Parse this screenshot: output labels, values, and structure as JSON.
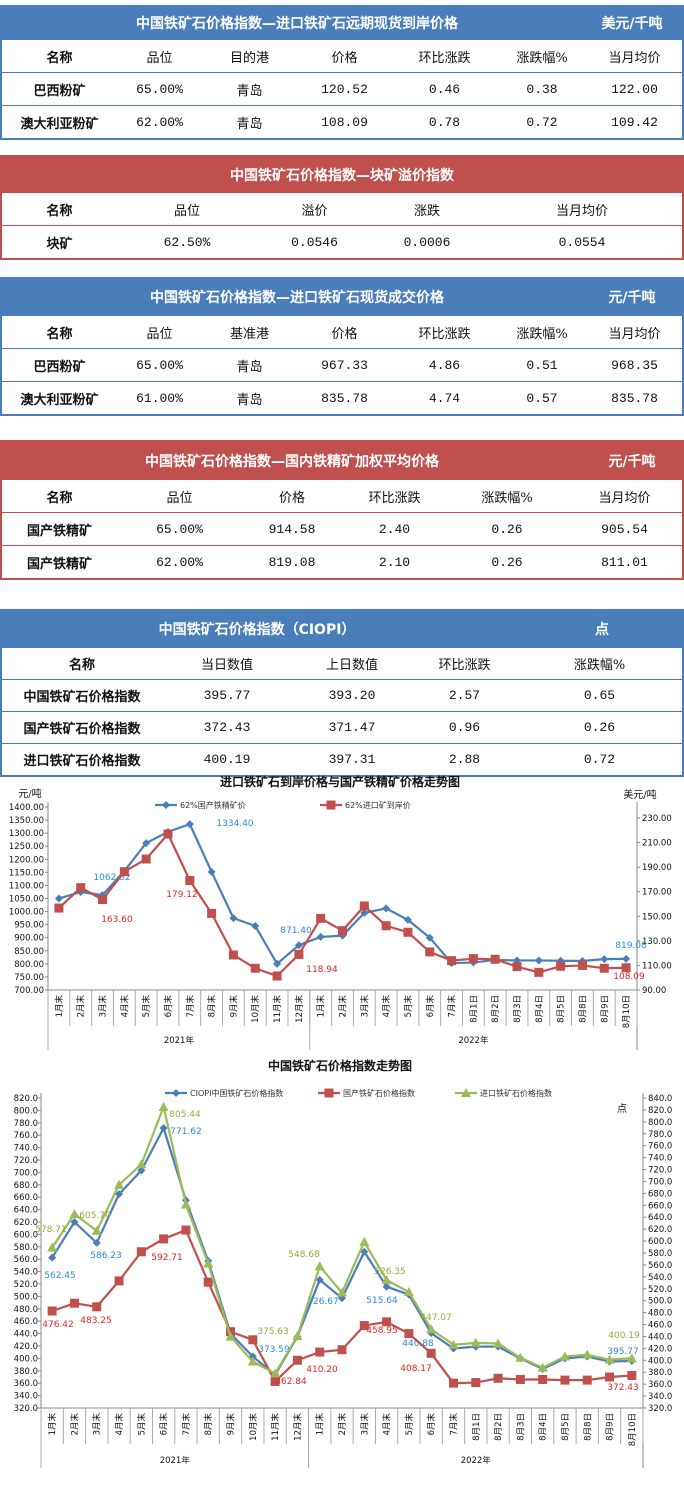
{
  "colors": {
    "blue": "#4a7ebb",
    "red": "#c0504d",
    "green": "#9bbb59"
  },
  "tables": [
    {
      "theme": "blue",
      "title": "中国铁矿石价格指数—进口铁矿石远期现货到岸价格",
      "unit": "美元/千吨",
      "columns": [
        "名称",
        "品位",
        "目的港",
        "价格",
        "环比涨跌",
        "涨跌幅%",
        "当月均价"
      ],
      "rows": [
        [
          "巴西粉矿",
          "65.00%",
          "青岛",
          "120.52",
          "0.46",
          "0.38",
          "122.00"
        ],
        [
          "澳大利亚粉矿",
          "62.00%",
          "青岛",
          "108.09",
          "0.78",
          "0.72",
          "109.42"
        ]
      ]
    },
    {
      "theme": "red",
      "title": "中国铁矿石价格指数—块矿溢价指数",
      "unit": "",
      "columns": [
        "名称",
        "品位",
        "溢价",
        "涨跌",
        "当月均价"
      ],
      "rows": [
        [
          "块矿",
          "62.50%",
          "0.0546",
          "0.0006",
          "0.0554"
        ]
      ]
    },
    {
      "theme": "blue",
      "title": "中国铁矿石价格指数—进口铁矿石现货成交价格",
      "unit": "元/千吨",
      "columns": [
        "名称",
        "品位",
        "基准港",
        "价格",
        "环比涨跌",
        "涨跌幅%",
        "当月均价"
      ],
      "rows": [
        [
          "巴西粉矿",
          "65.00%",
          "青岛",
          "967.33",
          "4.86",
          "0.51",
          "968.35"
        ],
        [
          "澳大利亚粉矿",
          "61.00%",
          "青岛",
          "835.78",
          "4.74",
          "0.57",
          "835.78"
        ]
      ]
    },
    {
      "theme": "red",
      "title": "中国铁矿石价格指数—国内铁精矿加权平均价格",
      "unit": "元/千吨",
      "columns": [
        "名称",
        "品位",
        "价格",
        "环比涨跌",
        "涨跌幅%",
        "当月均价"
      ],
      "rows": [
        [
          "国产铁精矿",
          "65.00%",
          "914.58",
          "2.40",
          "0.26",
          "905.54"
        ],
        [
          "国产铁精矿",
          "62.00%",
          "819.08",
          "2.10",
          "0.26",
          "811.01"
        ]
      ]
    },
    {
      "theme": "blue",
      "title": "中国铁矿石价格指数（CIOPI）",
      "unit": "点",
      "columns": [
        "名称",
        "当日数值",
        "上日数值",
        "环比涨跌",
        "涨跌幅%"
      ],
      "rows": [
        [
          "中国铁矿石价格指数",
          "395.77",
          "393.20",
          "2.57",
          "0.65"
        ],
        [
          "国产铁矿石价格指数",
          "372.43",
          "371.47",
          "0.96",
          "0.26"
        ],
        [
          "进口铁矿石价格指数",
          "400.19",
          "397.31",
          "2.88",
          "0.72"
        ]
      ]
    }
  ],
  "chart_data": [
    {
      "type": "line",
      "title": "进口铁矿石到岸价格与国产铁精矿价格走势图",
      "ylabel": "元/吨",
      "y2label": "美元/吨",
      "ylim": [
        700,
        1400
      ],
      "y2lim": [
        90,
        230
      ],
      "grid": false,
      "legend": "top",
      "categories": [
        "1月末",
        "2月末",
        "3月末",
        "4月末",
        "5月末",
        "6月末",
        "7月末",
        "8月末",
        "9月末",
        "10月末",
        "11月末",
        "12月末",
        "1月末",
        "2月末",
        "3月末",
        "4月末",
        "5月末",
        "6月末",
        "7月末",
        "8月1日",
        "8月2日",
        "8月3日",
        "8月4日",
        "8月5日",
        "8月8日",
        "8月9日",
        "8月10日"
      ],
      "groups": [
        {
          "label": "2021年",
          "count": 12
        },
        {
          "label": "2022年",
          "count": 15
        }
      ],
      "series": [
        {
          "name": "62%国产铁精矿价",
          "axis": "left",
          "color": "#4a7ebb",
          "marker": "diamond",
          "values": [
            1050,
            1075,
            1062.82,
            1155,
            1262,
            1305,
            1334.4,
            1152,
            975,
            945,
            800,
            871.4,
            903,
            908,
            995,
            1012,
            968,
            900,
            803,
            805,
            815,
            813,
            813,
            812,
            811,
            818,
            819.08
          ],
          "labels": [
            {
              "i": 2,
              "text": "1062.82"
            },
            {
              "i": 6,
              "text": "1334.40"
            },
            {
              "i": 11,
              "text": "871.40"
            },
            {
              "i": 26,
              "text": "819.08"
            }
          ]
        },
        {
          "name": "62%进口矿到岸价",
          "axis": "right",
          "color": "#c0504d",
          "marker": "square",
          "values": [
            156.7,
            173.3,
            163.6,
            186.3,
            196.6,
            217,
            179.12,
            152.4,
            118.5,
            107.7,
            101.4,
            118.94,
            148.3,
            138.3,
            158.4,
            142.3,
            137,
            121,
            113.9,
            115.5,
            115,
            109,
            104.4,
            109.3,
            110,
            107.7,
            108.09
          ],
          "labels": [
            {
              "i": 2,
              "text": "163.60"
            },
            {
              "i": 6,
              "text": "179.12"
            },
            {
              "i": 11,
              "text": "118.94"
            },
            {
              "i": 26,
              "text": "108.09"
            }
          ]
        }
      ]
    },
    {
      "type": "line",
      "title": "中国铁矿石价格指数走势图",
      "ylabel": "",
      "y2label": "点",
      "ylim": [
        320,
        820
      ],
      "y2lim": [
        320,
        840
      ],
      "grid": false,
      "legend": "top",
      "categories": [
        "1月末",
        "2月末",
        "3月末",
        "4月末",
        "5月末",
        "6月末",
        "7月末",
        "8月末",
        "9月末",
        "10月末",
        "11月末",
        "12月末",
        "1月末",
        "2月末",
        "3月末",
        "4月末",
        "5月末",
        "6月末",
        "7月末",
        "8月1日",
        "8月2日",
        "8月3日",
        "8月4日",
        "8月5日",
        "8月8日",
        "8月9日",
        "8月10日"
      ],
      "groups": [
        {
          "label": "2021年",
          "count": 12
        },
        {
          "label": "2022年",
          "count": 15
        }
      ],
      "series": [
        {
          "name": "CIOPI中国铁矿石价格指数",
          "axis": "left",
          "color": "#4a7ebb",
          "marker": "diamond",
          "values": [
            562.45,
            620,
            586.23,
            665,
            703,
            771.62,
            655,
            557,
            440,
            403,
            373.59,
            435,
            526.67,
            497,
            572,
            515.64,
            503,
            440.88,
            416,
            419,
            419,
            400,
            383,
            400,
            403,
            395,
            395.77
          ],
          "labels": [
            {
              "i": 0,
              "text": "562.45"
            },
            {
              "i": 2,
              "text": "586.23"
            },
            {
              "i": 5,
              "text": "771.62"
            },
            {
              "i": 10,
              "text": "373.59"
            },
            {
              "i": 12,
              "text": "526.67"
            },
            {
              "i": 15,
              "text": "515.64"
            },
            {
              "i": 17,
              "text": "440.88"
            },
            {
              "i": 26,
              "text": "395.77"
            }
          ]
        },
        {
          "name": "国产铁矿石价格指数",
          "axis": "left",
          "color": "#c0504d",
          "marker": "square",
          "values": [
            476.42,
            489,
            483.25,
            525,
            572,
            592.71,
            607,
            523,
            443,
            430,
            362.84,
            397,
            410.2,
            414,
            453,
            458.95,
            440,
            408.17,
            360,
            361,
            368,
            366,
            366,
            365,
            365,
            370,
            372.43
          ],
          "labels": [
            {
              "i": 0,
              "text": "476.42"
            },
            {
              "i": 2,
              "text": "483.25"
            },
            {
              "i": 5,
              "text": "592.71"
            },
            {
              "i": 10,
              "text": "362.84"
            },
            {
              "i": 12,
              "text": "410.20"
            },
            {
              "i": 15,
              "text": "458.95"
            },
            {
              "i": 17,
              "text": "408.17"
            },
            {
              "i": 26,
              "text": "372.43"
            }
          ]
        },
        {
          "name": "进口铁矿石价格指数",
          "axis": "left",
          "color": "#9bbb59",
          "marker": "triangle",
          "values": [
            578.71,
            633,
            605.7,
            680,
            713,
            805.44,
            648,
            553,
            435,
            395,
            375.63,
            436,
            548.68,
            506,
            588,
            526.35,
            507,
            447.07,
            422,
            425,
            424,
            401,
            385,
            403,
            406,
            398,
            400.19
          ],
          "labels": [
            {
              "i": 0,
              "text": "578.71"
            },
            {
              "i": 2,
              "text": "605.70"
            },
            {
              "i": 5,
              "text": "805.44"
            },
            {
              "i": 10,
              "text": "375.63"
            },
            {
              "i": 12,
              "text": "548.68"
            },
            {
              "i": 15,
              "text": "526.35"
            },
            {
              "i": 17,
              "text": "447.07"
            },
            {
              "i": 26,
              "text": "400.19"
            }
          ]
        }
      ]
    }
  ]
}
